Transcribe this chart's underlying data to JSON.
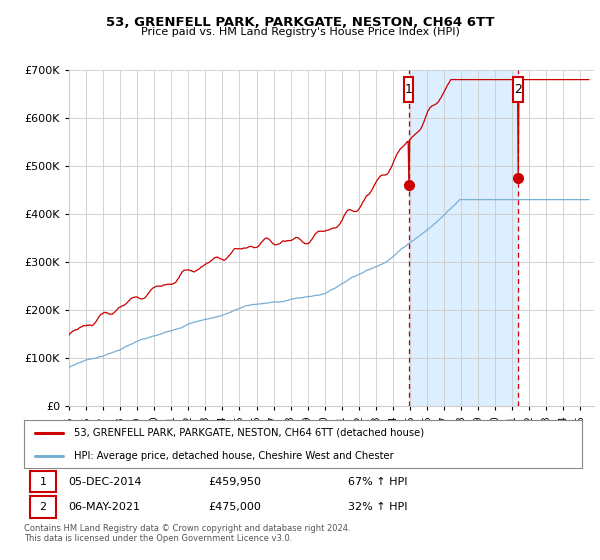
{
  "title1": "53, GRENFELL PARK, PARKGATE, NESTON, CH64 6TT",
  "title2": "Price paid vs. HM Land Registry's House Price Index (HPI)",
  "legend1": "53, GRENFELL PARK, PARKGATE, NESTON, CH64 6TT (detached house)",
  "legend2": "HPI: Average price, detached house, Cheshire West and Chester",
  "footnote": "Contains HM Land Registry data © Crown copyright and database right 2024.\nThis data is licensed under the Open Government Licence v3.0.",
  "sale1_date": "05-DEC-2014",
  "sale1_price": 459950,
  "sale1_note": "67% ↑ HPI",
  "sale2_date": "06-MAY-2021",
  "sale2_price": 475000,
  "sale2_note": "32% ↑ HPI",
  "red_color": "#cc0000",
  "blue_color": "#7aafd4",
  "shade_color": "#ddeeff",
  "marker_box_color": "#cc0000",
  "grid_color": "#cccccc",
  "background_color": "#ffffff",
  "ylim": [
    0,
    700000
  ],
  "yticks": [
    0,
    100000,
    200000,
    300000,
    400000,
    500000,
    600000,
    700000
  ],
  "sale1_x": 2014.92,
  "sale2_x": 2021.35
}
